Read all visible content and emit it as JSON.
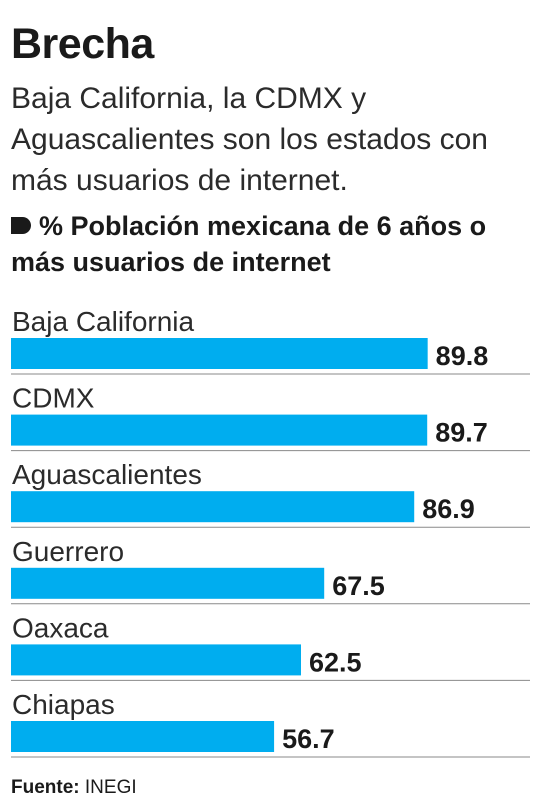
{
  "title": "Brecha",
  "subtitle": "Baja California, la CDMX y Aguascalientes son los estados con más usuarios de internet.",
  "legend": "% Población mexicana de 6 años o más usuarios de internet",
  "source": {
    "label": "Fuente:",
    "value": "INEGI"
  },
  "colors": {
    "bar": "#00adef",
    "text": "#1a1a1a",
    "separator": "#8a8a8a"
  },
  "chart_data": {
    "type": "bar",
    "orientation": "horizontal",
    "categories": [
      "Baja California",
      "CDMX",
      "Aguascalientes",
      "Guerrero",
      "Oaxaca",
      "Chiapas"
    ],
    "values": [
      89.8,
      89.7,
      86.9,
      67.5,
      62.5,
      56.7
    ],
    "xlim": [
      0,
      100
    ],
    "grid": false,
    "data_labels": true
  }
}
